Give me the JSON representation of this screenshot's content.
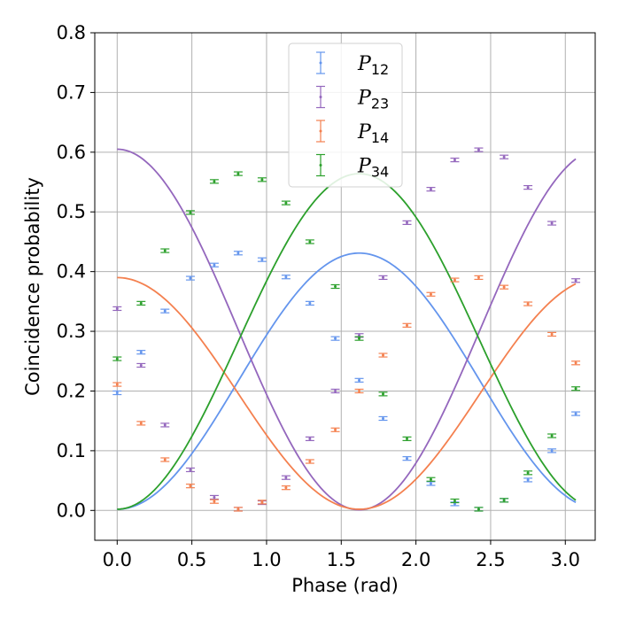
{
  "chart_data": {
    "type": "line",
    "xlabel": "Phase (rad)",
    "ylabel": "Coincidence probability",
    "xlim": [
      -0.15,
      3.2
    ],
    "ylim": [
      -0.05,
      0.8
    ],
    "xticks": [
      0.0,
      0.5,
      1.0,
      1.5,
      2.0,
      2.5,
      3.0
    ],
    "xtick_labels": [
      "0.0",
      "0.5",
      "1.0",
      "1.5",
      "2.0",
      "2.5",
      "3.0"
    ],
    "yticks": [
      0.0,
      0.1,
      0.2,
      0.3,
      0.4,
      0.5,
      0.6,
      0.7,
      0.8
    ],
    "ytick_labels": [
      "0.0",
      "0.1",
      "0.2",
      "0.3",
      "0.4",
      "0.5",
      "0.6",
      "0.7",
      "0.8"
    ],
    "grid": true,
    "legend_position": "top-center",
    "x": [
      0.0,
      0.16,
      0.32,
      0.49,
      0.65,
      0.81,
      0.97,
      1.13,
      1.29,
      1.46,
      1.62,
      1.78,
      1.94,
      2.1,
      2.26,
      2.42,
      2.59,
      2.75,
      2.91,
      3.07
    ],
    "series": [
      {
        "name": "P",
        "subscript": "12",
        "color": "#6495ed",
        "marker": "errorbar",
        "values": [
          0.197,
          0.265,
          0.334,
          0.389,
          0.411,
          0.431,
          0.42,
          0.391,
          0.347,
          0.288,
          0.218,
          0.154,
          0.087,
          0.045,
          0.011,
          0.002,
          0.017,
          0.051,
          0.1,
          0.162
        ],
        "error": 0.003,
        "fit": {
          "mean": 0.2165,
          "amplitude": 0.2145,
          "omega": 1.9393,
          "phase": 0.0,
          "phi": -1.5708
        }
      },
      {
        "name": "P",
        "subscript": "23",
        "color": "#9467bd",
        "marker": "errorbar",
        "values": [
          0.338,
          0.243,
          0.143,
          0.068,
          0.022,
          0.002,
          0.013,
          0.055,
          0.12,
          0.2,
          0.293,
          0.39,
          0.482,
          0.538,
          0.587,
          0.604,
          0.592,
          0.541,
          0.481,
          0.385
        ],
        "error": 0.003,
        "fit": {
          "mean": 0.303,
          "amplitude": 0.302,
          "omega": 1.9393,
          "phi": 1.5708
        }
      },
      {
        "name": "P",
        "subscript": "14",
        "color": "#f4804f",
        "marker": "errorbar",
        "values": [
          0.211,
          0.146,
          0.085,
          0.041,
          0.015,
          0.002,
          0.014,
          0.038,
          0.082,
          0.135,
          0.2,
          0.26,
          0.31,
          0.362,
          0.386,
          0.39,
          0.374,
          0.346,
          0.295,
          0.247
        ],
        "error": 0.003,
        "fit": {
          "mean": 0.196,
          "amplitude": 0.194,
          "omega": 1.9393,
          "phi": 1.5708
        }
      },
      {
        "name": "P",
        "subscript": "34",
        "color": "#2ca02c",
        "marker": "errorbar",
        "values": [
          0.254,
          0.347,
          0.435,
          0.499,
          0.551,
          0.564,
          0.554,
          0.515,
          0.45,
          0.375,
          0.288,
          0.195,
          0.12,
          0.052,
          0.016,
          0.002,
          0.017,
          0.063,
          0.125,
          0.204
        ],
        "error": 0.003,
        "fit": {
          "mean": 0.283,
          "amplitude": 0.281,
          "omega": 1.9393,
          "phi": -1.5708
        }
      }
    ]
  }
}
